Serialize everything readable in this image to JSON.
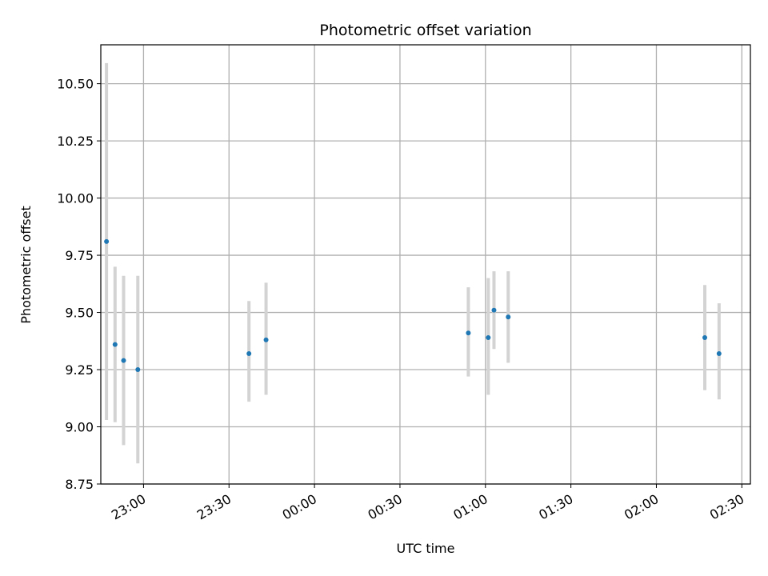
{
  "chart_data": {
    "type": "scatter",
    "title": "Photometric offset variation",
    "xlabel": "UTC time",
    "ylabel": "Photometric offset",
    "xlim": [
      "22:45",
      "02:33"
    ],
    "ylim": [
      8.75,
      10.67
    ],
    "grid": true,
    "x_tick_labels": [
      "23:00",
      "23:30",
      "00:00",
      "00:30",
      "01:00",
      "01:30",
      "02:00",
      "02:30"
    ],
    "y_tick_labels": [
      "8.75",
      "9.00",
      "9.25",
      "9.50",
      "9.75",
      "10.00",
      "10.25",
      "10.50"
    ],
    "y_ticks": [
      8.75,
      9.0,
      9.25,
      9.5,
      9.75,
      10.0,
      10.25,
      10.5
    ],
    "series": [
      {
        "marker_color": "#1f77b4",
        "error_bar_color": "#d3d3d3",
        "points": [
          {
            "x": "22:47",
            "y": 9.81,
            "err_low": 9.03,
            "err_high": 10.59
          },
          {
            "x": "22:50",
            "y": 9.36,
            "err_low": 9.02,
            "err_high": 9.7
          },
          {
            "x": "22:53",
            "y": 9.29,
            "err_low": 8.92,
            "err_high": 9.66
          },
          {
            "x": "22:58",
            "y": 9.25,
            "err_low": 8.84,
            "err_high": 9.66
          },
          {
            "x": "23:37",
            "y": 9.32,
            "err_low": 9.11,
            "err_high": 9.55
          },
          {
            "x": "23:43",
            "y": 9.38,
            "err_low": 9.14,
            "err_high": 9.63
          },
          {
            "x": "00:54",
            "y": 9.41,
            "err_low": 9.22,
            "err_high": 9.61
          },
          {
            "x": "01:01",
            "y": 9.39,
            "err_low": 9.14,
            "err_high": 9.65
          },
          {
            "x": "01:03",
            "y": 9.51,
            "err_low": 9.34,
            "err_high": 9.68
          },
          {
            "x": "01:08",
            "y": 9.48,
            "err_low": 9.28,
            "err_high": 9.68
          },
          {
            "x": "02:17",
            "y": 9.39,
            "err_low": 9.16,
            "err_high": 9.62
          },
          {
            "x": "02:22",
            "y": 9.32,
            "err_low": 9.12,
            "err_high": 9.54
          }
        ]
      }
    ]
  }
}
